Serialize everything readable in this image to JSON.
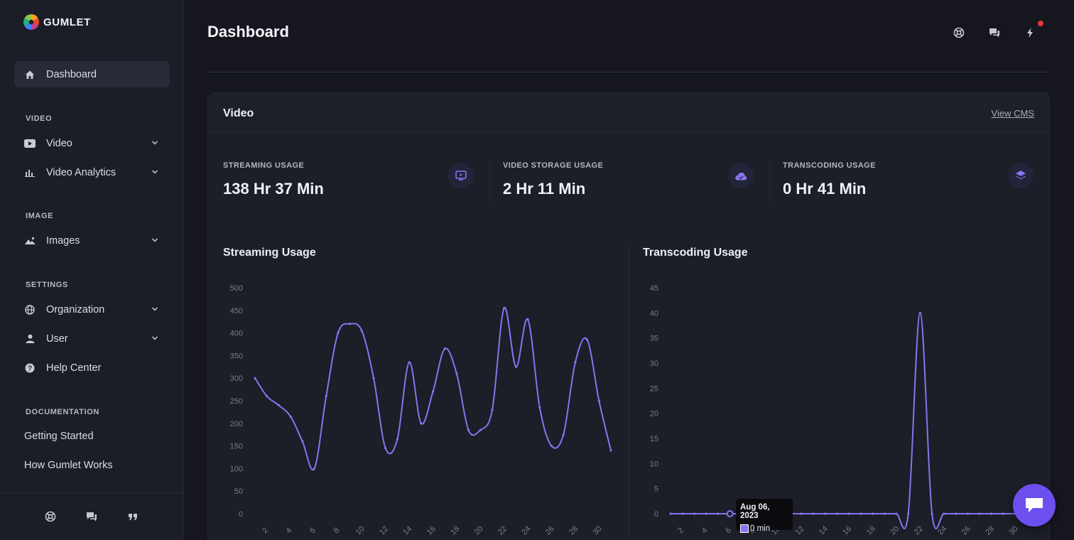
{
  "brand": {
    "name": "GUMLET"
  },
  "sidebar": {
    "primary": {
      "label": "Dashboard",
      "icon": "home-icon"
    },
    "sections": {
      "video": {
        "label": "VIDEO",
        "items": [
          {
            "label": "Video",
            "icon": "video-icon"
          },
          {
            "label": "Video Analytics",
            "icon": "bar-chart-icon"
          }
        ]
      },
      "image": {
        "label": "IMAGE",
        "items": [
          {
            "label": "Images",
            "icon": "image-icon"
          }
        ]
      },
      "settings": {
        "label": "SETTINGS",
        "items": [
          {
            "label": "Organization",
            "icon": "globe-icon"
          },
          {
            "label": "User",
            "icon": "user-icon"
          },
          {
            "label": "Help Center",
            "icon": "help-icon"
          }
        ]
      },
      "documentation": {
        "label": "DOCUMENTATION",
        "links": [
          "Getting Started",
          "How Gumlet Works"
        ]
      }
    }
  },
  "header": {
    "title": "Dashboard"
  },
  "card": {
    "title": "Video",
    "view_cms": "View CMS",
    "stats": [
      {
        "label": "STREAMING USAGE",
        "value": "138 Hr 37 Min",
        "icon": "play-screen-icon"
      },
      {
        "label": "VIDEO STORAGE USAGE",
        "value": "2 Hr 11 Min",
        "icon": "cloud-icon"
      },
      {
        "label": "TRANSCODING USAGE",
        "value": "0 Hr 41 Min",
        "icon": "layers-icon"
      }
    ],
    "streaming_chart_title": "Streaming Usage",
    "transcoding_chart_title": "Transcoding Usage"
  },
  "tooltip": {
    "date": "Aug 06, 2023",
    "value": "0 min"
  },
  "colors": {
    "accent": "#8a73f0",
    "background": "#15161e",
    "sidebar": "#1b1d27"
  },
  "chart_data": [
    {
      "type": "line",
      "title": "Streaming Usage",
      "x": [
        1,
        2,
        3,
        4,
        5,
        6,
        7,
        8,
        9,
        10,
        11,
        12,
        13,
        14,
        15,
        16,
        17,
        18,
        19,
        20,
        21,
        22,
        23,
        24,
        25,
        26,
        27,
        28,
        29,
        30,
        31
      ],
      "x_ticks": [
        2,
        4,
        6,
        8,
        10,
        12,
        14,
        16,
        18,
        20,
        22,
        24,
        26,
        28,
        30
      ],
      "y_ticks": [
        0,
        50,
        100,
        150,
        200,
        250,
        300,
        350,
        400,
        450,
        500
      ],
      "ylim": [
        0,
        500
      ],
      "values": [
        300,
        260,
        240,
        215,
        160,
        100,
        260,
        400,
        420,
        405,
        300,
        145,
        165,
        335,
        200,
        270,
        365,
        310,
        185,
        185,
        230,
        455,
        325,
        430,
        235,
        150,
        175,
        335,
        385,
        250,
        140
      ]
    },
    {
      "type": "line",
      "title": "Transcoding Usage",
      "x": [
        1,
        2,
        3,
        4,
        5,
        6,
        7,
        8,
        9,
        10,
        11,
        12,
        13,
        14,
        15,
        16,
        17,
        18,
        19,
        20,
        21,
        22,
        23,
        24,
        25,
        26,
        27,
        28,
        29,
        30,
        31
      ],
      "x_ticks": [
        2,
        4,
        6,
        8,
        10,
        12,
        14,
        16,
        18,
        20,
        22,
        24,
        26,
        28,
        30
      ],
      "y_ticks": [
        0,
        5,
        10,
        15,
        20,
        25,
        30,
        35,
        40,
        45
      ],
      "ylim": [
        0,
        45
      ],
      "values": [
        0,
        0,
        0,
        0,
        0,
        0,
        0,
        0,
        0,
        0,
        0,
        0,
        0,
        0,
        0,
        0,
        0,
        0,
        0,
        0,
        0,
        40,
        0,
        0,
        0,
        0,
        0,
        0,
        0,
        0,
        0
      ],
      "highlight_x": 6
    }
  ]
}
